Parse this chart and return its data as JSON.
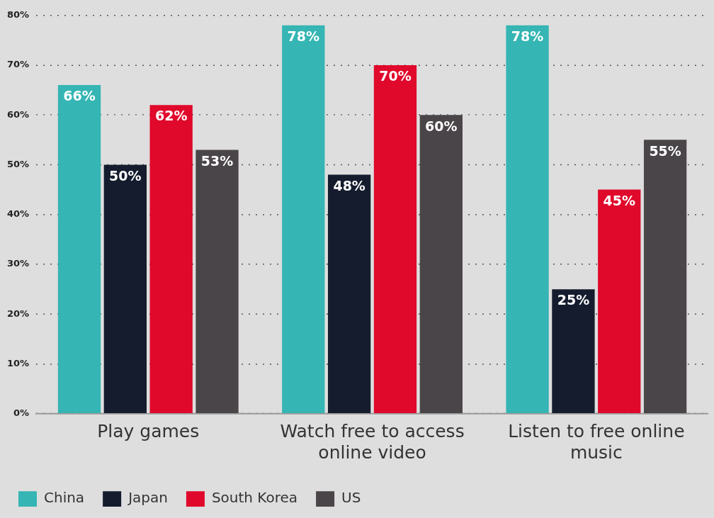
{
  "chart_data": {
    "type": "bar",
    "categories": [
      "Play games",
      "Watch free to access online video",
      "Listen to free online music"
    ],
    "series": [
      {
        "name": "China",
        "color": "#35b5b3",
        "values": [
          66,
          78,
          78
        ],
        "value_labels": [
          "66%",
          "78%",
          "78%"
        ]
      },
      {
        "name": "Japan",
        "color": "#141c2e",
        "values": [
          50,
          48,
          25
        ],
        "value_labels": [
          "50%",
          "48%",
          "25%"
        ]
      },
      {
        "name": "South Korea",
        "color": "#e0082b",
        "values": [
          62,
          70,
          45
        ],
        "value_labels": [
          "62%",
          "70%",
          "45%"
        ]
      },
      {
        "name": "US",
        "color": "#4a4548",
        "values": [
          53,
          60,
          55
        ],
        "value_labels": [
          "53%",
          "60%",
          "55%"
        ]
      }
    ],
    "ylim": [
      0,
      80
    ],
    "yticks": [
      {
        "value": 0,
        "label": "0%"
      },
      {
        "value": 10,
        "label": "10%"
      },
      {
        "value": 20,
        "label": "20%"
      },
      {
        "value": 30,
        "label": "30%"
      },
      {
        "value": 40,
        "label": "40%"
      },
      {
        "value": 50,
        "label": "50%"
      },
      {
        "value": 60,
        "label": "60%"
      },
      {
        "value": 70,
        "label": "70%"
      },
      {
        "value": 80,
        "label": "80%"
      }
    ],
    "grid": "y",
    "legend": "bottom left"
  }
}
